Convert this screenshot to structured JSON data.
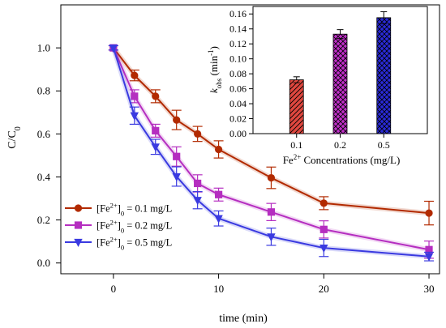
{
  "chart_data": [
    {
      "type": "line",
      "xlabel": "time (min)",
      "ylabel": {
        "base": "C/C",
        "sub": "0"
      },
      "xlim": [
        -5,
        31
      ],
      "ylim": [
        -0.05,
        1.2
      ],
      "xticks": [
        0,
        10,
        20,
        30
      ],
      "yticks": [
        0.0,
        0.2,
        0.4,
        0.6,
        0.8,
        1.0
      ],
      "x": [
        0,
        2,
        4,
        6,
        8,
        10,
        15,
        20,
        30
      ],
      "series": [
        {
          "name": {
            "pre": "[Fe",
            "sup": "2+",
            "post": "]",
            "sub": "0",
            "tail": " = 0.1 mg/L"
          },
          "marker": "circle",
          "color": "#b22a00",
          "values": [
            1.0,
            0.872,
            0.775,
            0.665,
            0.6,
            0.528,
            0.396,
            0.278,
            0.232
          ],
          "errors": [
            0.01,
            0.025,
            0.03,
            0.045,
            0.035,
            0.04,
            0.05,
            0.03,
            0.055
          ]
        },
        {
          "name": {
            "pre": "[Fe",
            "sup": "2+",
            "post": "]",
            "sub": "0",
            "tail": " = 0.2 mg/L"
          },
          "marker": "square",
          "color": "#b52ec0",
          "values": [
            1.0,
            0.775,
            0.615,
            0.495,
            0.37,
            0.318,
            0.237,
            0.156,
            0.062
          ],
          "errors": [
            0.01,
            0.03,
            0.03,
            0.045,
            0.04,
            0.03,
            0.04,
            0.04,
            0.04
          ]
        },
        {
          "name": {
            "pre": "[Fe",
            "sup": "2+",
            "post": "]",
            "sub": "0",
            "tail": " = 0.5 mg/L"
          },
          "marker": "triangle-down",
          "color": "#3a3ae0",
          "values": [
            1.0,
            0.685,
            0.54,
            0.402,
            0.292,
            0.207,
            0.122,
            0.07,
            0.03
          ],
          "errors": [
            0.01,
            0.04,
            0.035,
            0.045,
            0.04,
            0.035,
            0.04,
            0.04,
            0.02
          ]
        }
      ],
      "legend_position": "bottom-left",
      "grid": false
    },
    {
      "type": "bar",
      "categories": [
        "0.1",
        "0.2",
        "0.5"
      ],
      "values": [
        0.072,
        0.133,
        0.155
      ],
      "errors": [
        0.004,
        0.006,
        0.008
      ],
      "colors": [
        "#e0473f",
        "#c030c8",
        "#2a2ad8"
      ],
      "patterns": [
        "diagonal-hatch",
        "cross-hatch",
        "cross-hatch"
      ],
      "xlabel": {
        "pre": "Fe",
        "sup": "2+",
        "post": " Concentrations (mg/L)"
      },
      "ylabel": {
        "base": "k",
        "sub": "obs",
        "mid": " (min",
        "sup": "-1",
        "end": ")"
      },
      "ylim": [
        0,
        0.17
      ],
      "yticks": [
        0.0,
        0.02,
        0.04,
        0.06,
        0.08,
        0.1,
        0.12,
        0.14,
        0.16
      ],
      "grid": false
    }
  ]
}
